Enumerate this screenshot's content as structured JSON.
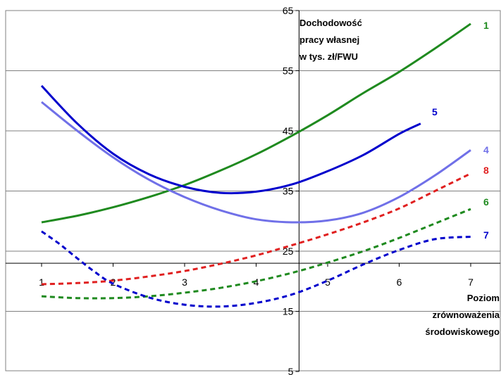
{
  "chart_data": {
    "type": "line",
    "title_lines": [
      "Dochodowość",
      "pracy własnej",
      "w tys. zł/FWU"
    ],
    "xlabel_lines": [
      "Poziom",
      "zrównoważenia",
      "środowiskowego"
    ],
    "x_ticks": [
      "1",
      "2",
      "3",
      "4",
      "5",
      "6",
      "7"
    ],
    "y_ticks": [
      "65",
      "55",
      "45",
      "35",
      "25",
      "15",
      "5"
    ],
    "xlim": [
      1,
      7
    ],
    "ylim": [
      5,
      65
    ],
    "x_axis_crosses_y": 23,
    "y_axis_crosses_x": 4.6,
    "series": [
      {
        "name": "1",
        "color": "#1f8a1f",
        "style": "solid",
        "x": [
          1,
          1.5,
          2,
          2.5,
          3,
          3.5,
          4,
          4.5,
          5,
          5.5,
          6,
          6.5,
          7
        ],
        "values": [
          29.8,
          30.9,
          32.3,
          34.0,
          36.0,
          38.4,
          41.1,
          44.2,
          47.6,
          51.3,
          54.8,
          58.7,
          62.8
        ]
      },
      {
        "name": "5",
        "color": "#0000cc",
        "style": "solid",
        "x": [
          1,
          1.5,
          2,
          2.5,
          3,
          3.5,
          4,
          4.5,
          5,
          5.5,
          6,
          6.3
        ],
        "values": [
          52.5,
          46.2,
          41.2,
          37.8,
          35.7,
          34.7,
          34.9,
          36.1,
          38.3,
          41.0,
          44.5,
          46.2
        ]
      },
      {
        "name": "4",
        "color": "#7070e8",
        "style": "solid",
        "x": [
          1,
          1.5,
          2,
          2.5,
          3,
          3.5,
          4,
          4.5,
          5,
          5.5,
          6,
          6.5,
          7
        ],
        "values": [
          49.8,
          45.0,
          40.6,
          36.9,
          34.0,
          31.8,
          30.3,
          29.8,
          30.1,
          31.4,
          34.0,
          37.6,
          41.8
        ]
      },
      {
        "name": "8",
        "color": "#e02020",
        "style": "dashed",
        "x": [
          1,
          1.5,
          2,
          2.5,
          3,
          3.5,
          4,
          4.5,
          5,
          5.5,
          6,
          6.5,
          7
        ],
        "values": [
          19.5,
          19.7,
          20.1,
          20.8,
          21.7,
          22.9,
          24.3,
          26.0,
          27.8,
          29.8,
          32.1,
          35.0,
          37.9
        ]
      },
      {
        "name": "6",
        "color": "#1f8a1f",
        "style": "dashed",
        "x": [
          1,
          1.5,
          2,
          2.5,
          3,
          3.5,
          4,
          4.5,
          5,
          5.5,
          6,
          6.5,
          7
        ],
        "values": [
          17.5,
          17.2,
          17.2,
          17.5,
          18.1,
          18.9,
          20.0,
          21.4,
          23.1,
          25.0,
          27.2,
          29.6,
          32.0
        ]
      },
      {
        "name": "7",
        "color": "#0000cc",
        "style": "dashed",
        "x": [
          1,
          1.25,
          1.5,
          1.75,
          2,
          2.5,
          3,
          3.5,
          4,
          4.5,
          5,
          5.5,
          6,
          6.5,
          7
        ],
        "values": [
          28.3,
          26.2,
          23.8,
          21.5,
          19.6,
          17.3,
          16.1,
          15.8,
          16.4,
          17.8,
          20.1,
          22.8,
          25.2,
          27.0,
          27.4
        ]
      }
    ]
  }
}
